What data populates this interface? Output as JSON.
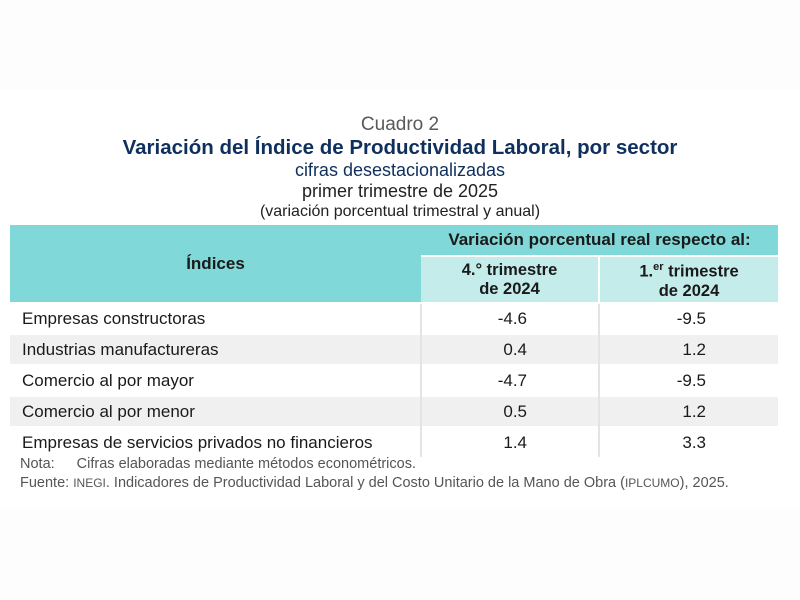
{
  "header": {
    "label": "Cuadro 2",
    "title": "Variación del Índice de Productividad Laboral, por sector",
    "subtitle": "cifras desestacionalizadas",
    "period": "primer trimestre de 2025",
    "units": "(variación porcentual trimestral y anual)"
  },
  "table": {
    "index_header": "Índices",
    "group_header": "Variación porcentual real respecto al:",
    "col1": {
      "prefix": "4.° trimestre",
      "year": "de 2024"
    },
    "col2": {
      "num": "1.",
      "sup": "er",
      "rest": " trimestre",
      "year": "de 2024"
    },
    "rows": [
      {
        "name": "Empresas constructoras",
        "q": "-4.6",
        "a": "-9.5"
      },
      {
        "name": "Industrias manufactureras",
        "q": "0.4",
        "a": "1.2"
      },
      {
        "name": "Comercio al por mayor",
        "q": "-4.7",
        "a": "-9.5"
      },
      {
        "name": "Comercio al por menor",
        "q": "0.5",
        "a": "1.2"
      },
      {
        "name": "Empresas de servicios privados no financieros",
        "q": "1.4",
        "a": "3.3"
      }
    ]
  },
  "notes": {
    "nota_label": "Nota:",
    "nota_text": "Cifras elaboradas mediante métodos econométricos.",
    "fuente_label": "Fuente:",
    "inegi": "INEGI",
    "fuente_mid": ". Indicadores de Productividad Laboral y del Costo Unitario de la Mano de Obra (",
    "iplcumo": "IPLCUMO",
    "fuente_end": "), 2025."
  }
}
